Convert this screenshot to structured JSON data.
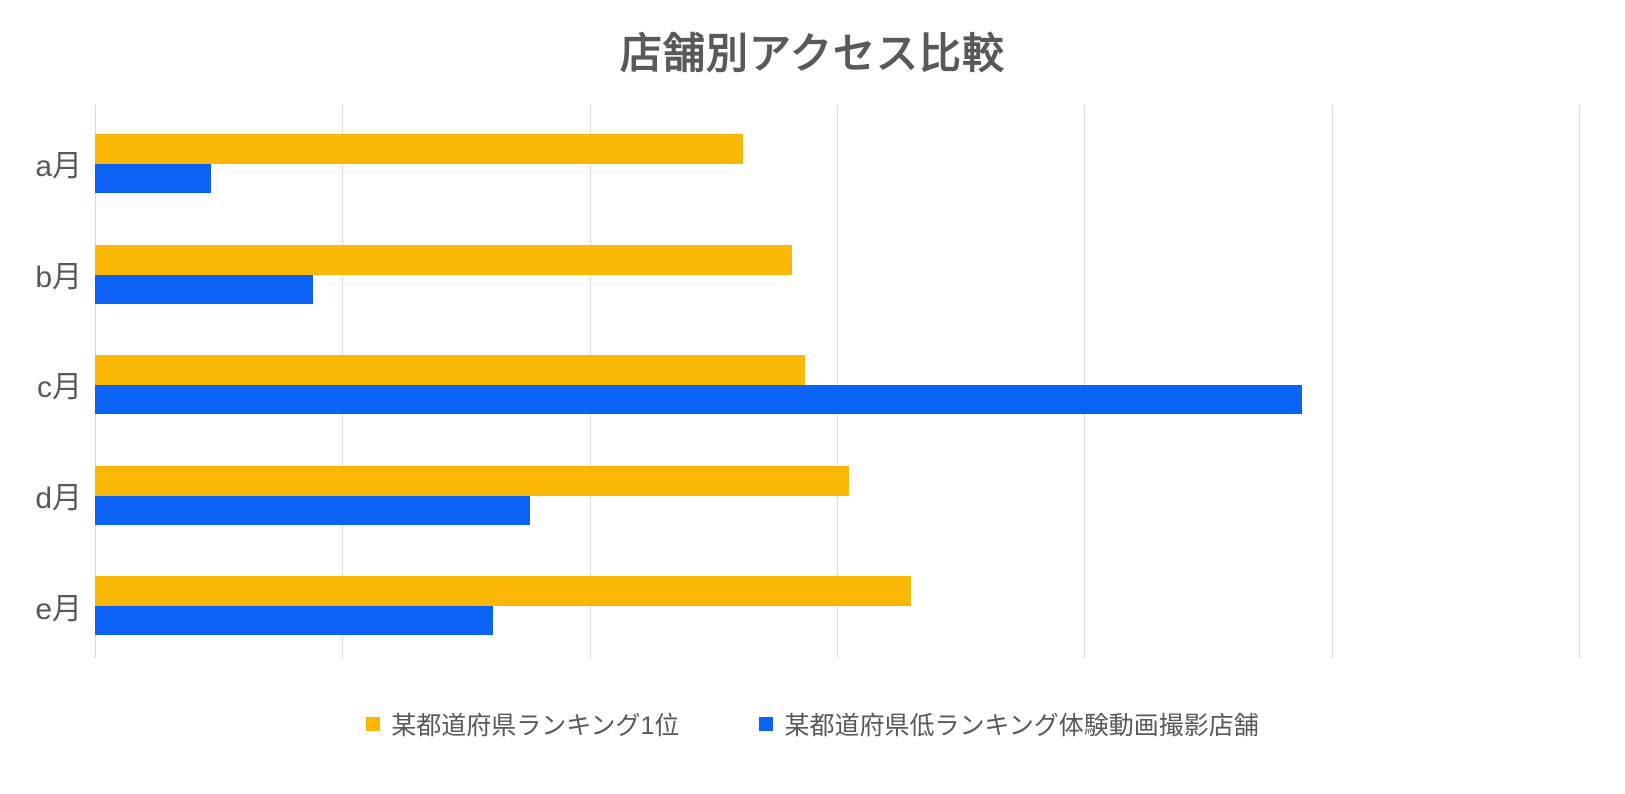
{
  "title": "店舗別アクセス比較",
  "colors": {
    "series1": "#FBB705",
    "series2": "#0B63F6",
    "title_text": "#595959",
    "category_text": "#595959",
    "legend_text": "#595959",
    "gridline": "#D9D9D9",
    "background": "#FFFFFF"
  },
  "chart_data": {
    "type": "bar",
    "orientation": "horizontal",
    "title": "店舗別アクセス比較",
    "categories": [
      "a月",
      "b月",
      "c月",
      "d月",
      "e月"
    ],
    "series": [
      {
        "name": "某都道府県ランキング1位",
        "color": "#FBB705",
        "values": [
          262,
          282,
          287,
          305,
          330
        ]
      },
      {
        "name": "某都道府県低ランキング体験動画撮影店舗",
        "color": "#0B63F6",
        "values": [
          47,
          88,
          488,
          176,
          161
        ]
      }
    ],
    "xlim": [
      0,
      600
    ],
    "gridline_interval": 100,
    "tick_labels_visible": false,
    "grid": "vertical-only",
    "legend_position": "bottom-center"
  }
}
